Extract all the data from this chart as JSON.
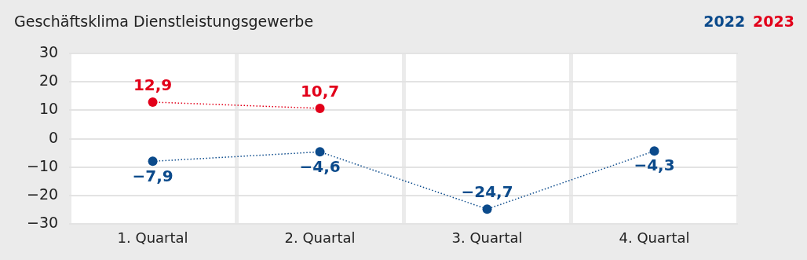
{
  "chart_data": {
    "type": "line",
    "title": "Geschäftsklima Dienstleistungsgewerbe",
    "categories": [
      "1. Quartal",
      "2. Quartal",
      "3. Quartal",
      "4. Quartal"
    ],
    "series": [
      {
        "name": "2022",
        "color": "#0b4a8b",
        "values": [
          -7.9,
          -4.6,
          -24.7,
          -4.3
        ],
        "value_labels": [
          "−7,9",
          "−4,6",
          "−24,7",
          "−4,3"
        ]
      },
      {
        "name": "2023",
        "color": "#e2001a",
        "values": [
          12.9,
          10.7,
          null,
          null
        ],
        "value_labels": [
          "12,9",
          "10,7",
          null,
          null
        ]
      }
    ],
    "ylim": [
      -30,
      30
    ],
    "yticks": [
      {
        "value": 30,
        "label": "30"
      },
      {
        "value": 20,
        "label": "20"
      },
      {
        "value": 10,
        "label": "10"
      },
      {
        "value": 0,
        "label": "0"
      },
      {
        "value": -10,
        "label": "−10"
      },
      {
        "value": -20,
        "label": "−20"
      },
      {
        "value": -30,
        "label": "−30"
      }
    ],
    "grid": true,
    "legend": "top right",
    "marker": "circle",
    "line_style": "dotted"
  }
}
